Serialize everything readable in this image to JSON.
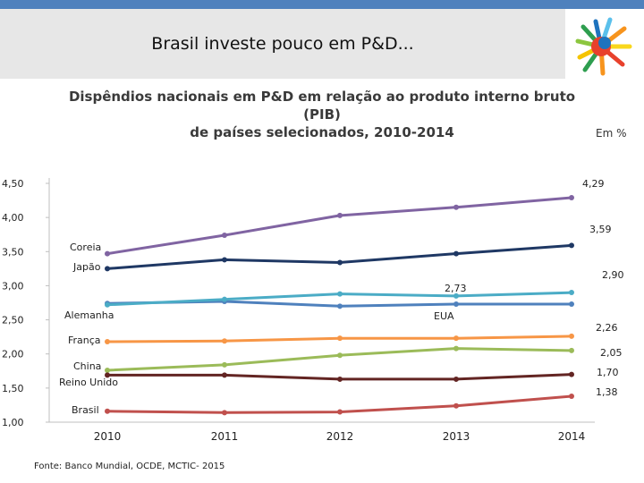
{
  "slide": {
    "title": "Brasil investe pouco em P&D...",
    "source": "Fonte: Banco Mundial, OCDE, MCTIC- 2015"
  },
  "colors": {
    "topbar": "#4f81bd",
    "Coreia": "#8064a2",
    "Japão": "#1f3864",
    "EUA": "#4f81bd",
    "Alemanha": "#4bacc6",
    "França": "#f79646",
    "China": "#9bbb59",
    "Reino Unido": "#632523",
    "Brasil": "#c0504d"
  },
  "chart_data": {
    "type": "line",
    "title": "Dispêndios nacionais em P&D em relação ao produto interno bruto (PIB) de países selecionados, 2010-2014",
    "title_lines": [
      "Dispêndios nacionais em P&D em relação ao produto interno bruto (PIB)",
      "de países selecionados, 2010-2014"
    ],
    "unit": "Em %",
    "x": [
      "2010",
      "2011",
      "2012",
      "2013",
      "2014"
    ],
    "ylim": [
      1.0,
      4.5
    ],
    "yticks": [
      "1,00",
      "1,50",
      "2,00",
      "2,50",
      "3,00",
      "3,50",
      "4,00",
      "4,50"
    ],
    "xlabel": "",
    "ylabel": "",
    "series": [
      {
        "name": "Coreia",
        "values": [
          3.47,
          3.74,
          4.03,
          4.15,
          4.29
        ],
        "end_label": "4,29"
      },
      {
        "name": "Japão",
        "values": [
          3.25,
          3.38,
          3.34,
          3.47,
          3.59
        ],
        "end_label": "3,59"
      },
      {
        "name": "EUA",
        "values": [
          2.74,
          2.77,
          2.7,
          2.73,
          2.73
        ],
        "end_label": "2,73"
      },
      {
        "name": "Alemanha",
        "values": [
          2.72,
          2.8,
          2.88,
          2.85,
          2.9
        ],
        "end_label": "2,90"
      },
      {
        "name": "França",
        "values": [
          2.18,
          2.19,
          2.23,
          2.23,
          2.26
        ],
        "end_label": "2,26"
      },
      {
        "name": "China",
        "values": [
          1.76,
          1.84,
          1.98,
          2.08,
          2.05
        ],
        "end_label": "2,05"
      },
      {
        "name": "Reino Unido",
        "values": [
          1.69,
          1.69,
          1.63,
          1.63,
          1.7
        ],
        "end_label": "1,70"
      },
      {
        "name": "Brasil",
        "values": [
          1.16,
          1.14,
          1.15,
          1.24,
          1.38
        ],
        "end_label": "1,38"
      }
    ]
  }
}
